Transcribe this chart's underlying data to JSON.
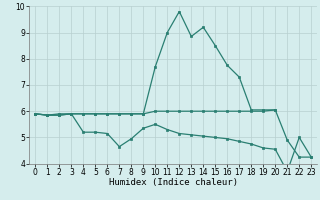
{
  "x": [
    0,
    1,
    2,
    3,
    4,
    5,
    6,
    7,
    8,
    9,
    10,
    11,
    12,
    13,
    14,
    15,
    16,
    17,
    18,
    19,
    20,
    21,
    22,
    23
  ],
  "curve_peak": [
    5.9,
    5.85,
    5.85,
    5.9,
    5.9,
    5.9,
    5.9,
    5.9,
    5.9,
    5.9,
    7.7,
    9.0,
    9.8,
    8.85,
    9.2,
    8.5,
    7.75,
    7.3,
    6.05,
    6.05,
    6.05,
    4.9,
    4.25,
    4.25
  ],
  "curve_flat": [
    5.9,
    5.85,
    5.9,
    5.9,
    5.9,
    5.9,
    5.9,
    5.9,
    5.9,
    5.9,
    6.0,
    6.0,
    6.0,
    6.0,
    6.0,
    6.0,
    6.0,
    6.0,
    6.0,
    6.0,
    6.05
  ],
  "x_flat": [
    0,
    1,
    2,
    3,
    4,
    5,
    6,
    7,
    8,
    9,
    10,
    11,
    12,
    13,
    14,
    15,
    16,
    17,
    18,
    19,
    20
  ],
  "curve_low": [
    5.9,
    5.85,
    5.85,
    5.9,
    5.2,
    5.2,
    5.15,
    4.65,
    4.95,
    5.35,
    5.5,
    5.3,
    5.15,
    5.1,
    5.05,
    5.0,
    4.95,
    4.85,
    4.75,
    4.6,
    4.55,
    3.7,
    5.0,
    4.25
  ],
  "line_color": "#2a7f72",
  "bg_color": "#d5eded",
  "grid_color": "#b8d0d0",
  "xlabel": "Humidex (Indice chaleur)",
  "ylim": [
    4.0,
    10.0
  ],
  "xlim": [
    -0.5,
    23.5
  ],
  "yticks": [
    4,
    5,
    6,
    7,
    8,
    9,
    10
  ],
  "xticks": [
    0,
    1,
    2,
    3,
    4,
    5,
    6,
    7,
    8,
    9,
    10,
    11,
    12,
    13,
    14,
    15,
    16,
    17,
    18,
    19,
    20,
    21,
    22,
    23
  ]
}
